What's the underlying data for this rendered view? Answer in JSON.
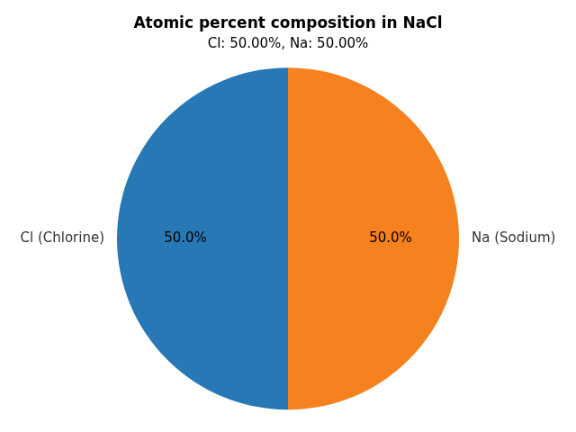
{
  "chart_data": {
    "type": "pie",
    "title": "Atomic percent composition in NaCl",
    "subtitle": "Cl: 50.00%, Na: 50.00%",
    "categories": [
      "Cl (Chlorine)",
      "Na (Sodium)"
    ],
    "values": [
      50.0,
      50.0
    ],
    "value_labels": [
      "50.0%",
      "50.0%"
    ],
    "colors": [
      "#2878b5",
      "#f5811f"
    ],
    "data_labels": true
  }
}
